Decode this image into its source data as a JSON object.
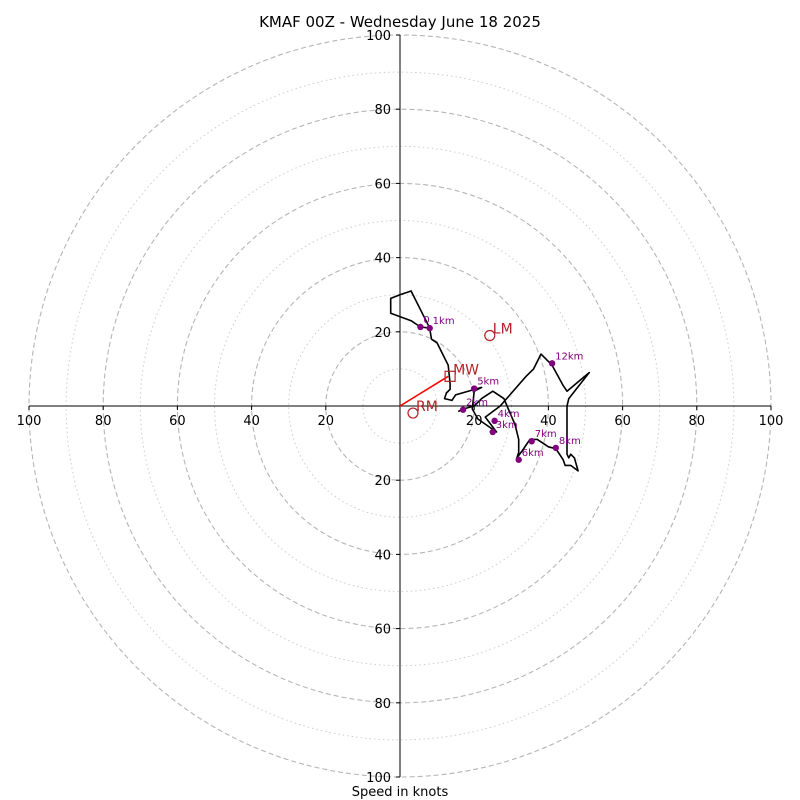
{
  "chart_data": {
    "type": "hodograph",
    "title": "KMAF 00Z - Wednesday June 18 2025",
    "xlabel": "Speed in knots",
    "xlim": [
      -100,
      100
    ],
    "ylim": [
      -100,
      100
    ],
    "grid": true,
    "ring_major": [
      20,
      40,
      60,
      80,
      100
    ],
    "ring_minor": [
      10,
      30,
      50,
      70,
      90
    ],
    "x_ticks": [
      {
        "v": -100,
        "label": "100"
      },
      {
        "v": -80,
        "label": "80"
      },
      {
        "v": -60,
        "label": "60"
      },
      {
        "v": -40,
        "label": "40"
      },
      {
        "v": -20,
        "label": "20"
      },
      {
        "v": 20,
        "label": "20"
      },
      {
        "v": 40,
        "label": "40"
      },
      {
        "v": 60,
        "label": "60"
      },
      {
        "v": 80,
        "label": "80"
      },
      {
        "v": 100,
        "label": "100"
      }
    ],
    "y_ticks": [
      {
        "v": 100,
        "label": "100"
      },
      {
        "v": 80,
        "label": "80"
      },
      {
        "v": 60,
        "label": "60"
      },
      {
        "v": 40,
        "label": "40"
      },
      {
        "v": 20,
        "label": "20"
      },
      {
        "v": -20,
        "label": "20"
      },
      {
        "v": -40,
        "label": "40"
      },
      {
        "v": -60,
        "label": "60"
      },
      {
        "v": -80,
        "label": "80"
      },
      {
        "v": -100,
        "label": "100"
      }
    ],
    "line_color": "#000000",
    "trace": [
      [
        15.7,
        -1.5
      ],
      [
        17.0,
        -0.8
      ],
      [
        20.0,
        0.0
      ],
      [
        22.0,
        2.0
      ],
      [
        25.0,
        4.0
      ],
      [
        28.0,
        2.0
      ],
      [
        31.0,
        -5.0
      ],
      [
        32.0,
        -9.0
      ],
      [
        32.0,
        -12.5
      ],
      [
        31.5,
        -14.0
      ],
      [
        33.0,
        -12.0
      ],
      [
        35.0,
        -9.0
      ],
      [
        37.0,
        -9.0
      ],
      [
        40.0,
        -11.0
      ],
      [
        42.0,
        -11.5
      ],
      [
        43.0,
        -13.0
      ],
      [
        44.0,
        -14.5
      ],
      [
        44.5,
        -16.0
      ],
      [
        46.0,
        -16.0
      ],
      [
        48.0,
        -17.5
      ],
      [
        47.0,
        -14.0
      ],
      [
        46.0,
        -13.0
      ],
      [
        45.5,
        -14.0
      ],
      [
        45.0,
        -13.0
      ],
      [
        45.0,
        -6.0
      ],
      [
        45.0,
        0.0
      ],
      [
        45.5,
        2.0
      ],
      [
        51.0,
        9.0
      ],
      [
        45.0,
        4.0
      ],
      [
        44.0,
        5.5
      ],
      [
        41.0,
        11.0
      ],
      [
        38.0,
        14.0
      ],
      [
        36.0,
        10.0
      ],
      [
        34.0,
        8.0
      ],
      [
        27.0,
        0.0
      ],
      [
        23.0,
        -3.0
      ],
      [
        26.0,
        -7.0
      ],
      [
        21.0,
        -3.5
      ],
      [
        19.5,
        -0.8
      ],
      [
        20.0,
        4.0
      ],
      [
        22.0,
        5.0
      ],
      [
        15.0,
        3.0
      ],
      [
        14.0,
        1.5
      ],
      [
        12.0,
        2.0
      ],
      [
        12.5,
        3.5
      ],
      [
        13.5,
        4.5
      ],
      [
        13.5,
        6.0
      ],
      [
        13.0,
        11.0
      ],
      [
        11.0,
        15.0
      ],
      [
        10.0,
        17.0
      ],
      [
        8.5,
        18.0
      ],
      [
        8.0,
        21.0
      ],
      [
        7.0,
        23.0
      ],
      [
        3.0,
        31.0
      ],
      [
        0.0,
        30.0
      ],
      [
        -2.5,
        29.0
      ],
      [
        -2.5,
        25.0
      ],
      [
        3.0,
        23.0
      ],
      [
        5.5,
        21.3
      ],
      [
        8.0,
        21.0
      ]
    ],
    "height_points": [
      {
        "label": "1km",
        "u": 8.0,
        "v": 21.0
      },
      {
        "label": "0",
        "u": 5.5,
        "v": 21.3
      },
      {
        "label": "2km",
        "u": 17.0,
        "v": -1.0
      },
      {
        "label": "3km",
        "u": 25.0,
        "v": -7.0
      },
      {
        "label": "4km",
        "u": 25.5,
        "v": -4.0
      },
      {
        "label": "5km",
        "u": 20.0,
        "v": 4.7
      },
      {
        "label": "6km",
        "u": 32.0,
        "v": -14.5
      },
      {
        "label": "7km",
        "u": 35.5,
        "v": -9.5
      },
      {
        "label": "8km",
        "u": 42.0,
        "v": -11.3
      },
      {
        "label": "12km",
        "u": 41.0,
        "v": 11.5
      }
    ],
    "height_point_color": "#800080",
    "motions": [
      {
        "label": "LM",
        "u": 24.2,
        "v": 19.0,
        "shape": "circle"
      },
      {
        "label": "MW",
        "u": 13.5,
        "v": 8.0,
        "shape": "square"
      },
      {
        "label": "RM",
        "u": 3.5,
        "v": -1.9,
        "shape": "circle"
      }
    ],
    "motion_color": "#b22222",
    "vector": {
      "u": 13.0,
      "v": 8.0,
      "color": "#ff0000"
    }
  }
}
